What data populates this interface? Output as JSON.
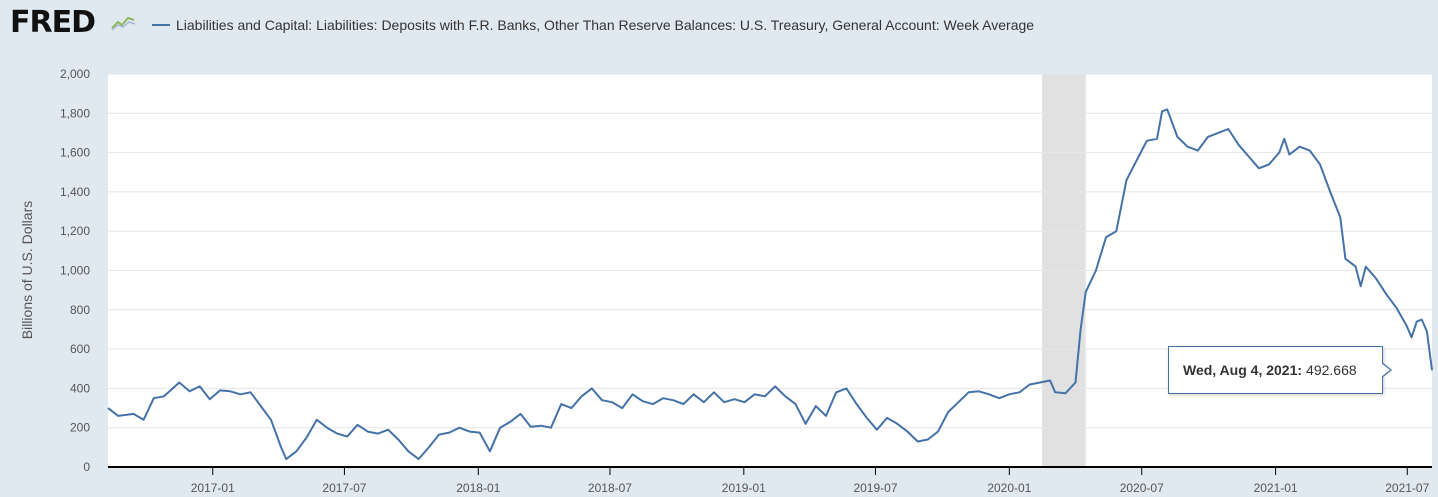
{
  "header": {
    "logo_text": "FRED",
    "legend_label": "Liabilities and Capital: Liabilities: Deposits with F.R. Banks, Other Than Reserve Balances: U.S. Treasury, General Account: Week Average"
  },
  "tooltip": {
    "date": "Wed, Aug 4, 2021:",
    "value": "492.668"
  },
  "colors": {
    "series": "#4572a7",
    "background": "#e1e9f0",
    "plot": "#ffffff",
    "recession": "#e1e1e1"
  },
  "chart_data": {
    "type": "line",
    "title": "",
    "xlabel": "",
    "ylabel": "Billions of U.S. Dollars",
    "ylim": [
      0,
      2000
    ],
    "yticks": [
      0,
      200,
      400,
      600,
      800,
      1000,
      1200,
      1400,
      1600,
      1800,
      2000
    ],
    "ytick_labels": [
      "0",
      "200",
      "400",
      "600",
      "800",
      "1,000",
      "1,200",
      "1,400",
      "1,600",
      "1,800",
      "2,000"
    ],
    "xticks": [
      "2017-01",
      "2017-07",
      "2018-01",
      "2018-07",
      "2019-01",
      "2019-07",
      "2020-01",
      "2020-07",
      "2021-01",
      "2021-07"
    ],
    "xlim": [
      "2016-08-10",
      "2021-08-04"
    ],
    "grid": true,
    "recession": {
      "start": "2020-02-15",
      "end": "2020-04-15"
    },
    "series": [
      {
        "name": "Liabilities and Capital: Liabilities: Deposits with F.R. Banks, Other Than Reserve Balances: U.S. Treasury, General Account: Week Average",
        "points": [
          [
            "2016-08-10",
            300
          ],
          [
            "2016-08-24",
            260
          ],
          [
            "2016-09-14",
            270
          ],
          [
            "2016-09-28",
            240
          ],
          [
            "2016-10-12",
            350
          ],
          [
            "2016-10-26",
            360
          ],
          [
            "2016-11-16",
            430
          ],
          [
            "2016-11-30",
            385
          ],
          [
            "2016-12-14",
            410
          ],
          [
            "2016-12-28",
            345
          ],
          [
            "2017-01-11",
            390
          ],
          [
            "2017-01-25",
            385
          ],
          [
            "2017-02-08",
            370
          ],
          [
            "2017-02-22",
            380
          ],
          [
            "2017-03-08",
            310
          ],
          [
            "2017-03-22",
            240
          ],
          [
            "2017-04-05",
            100
          ],
          [
            "2017-04-12",
            40
          ],
          [
            "2017-04-26",
            80
          ],
          [
            "2017-05-10",
            150
          ],
          [
            "2017-05-24",
            240
          ],
          [
            "2017-06-07",
            200
          ],
          [
            "2017-06-21",
            170
          ],
          [
            "2017-07-05",
            155
          ],
          [
            "2017-07-19",
            215
          ],
          [
            "2017-08-02",
            180
          ],
          [
            "2017-08-16",
            170
          ],
          [
            "2017-08-30",
            190
          ],
          [
            "2017-09-13",
            140
          ],
          [
            "2017-09-27",
            80
          ],
          [
            "2017-10-11",
            40
          ],
          [
            "2017-10-25",
            100
          ],
          [
            "2017-11-08",
            165
          ],
          [
            "2017-11-22",
            175
          ],
          [
            "2017-12-06",
            200
          ],
          [
            "2017-12-20",
            180
          ],
          [
            "2018-01-03",
            175
          ],
          [
            "2018-01-17",
            80
          ],
          [
            "2018-01-31",
            200
          ],
          [
            "2018-02-14",
            230
          ],
          [
            "2018-02-28",
            270
          ],
          [
            "2018-03-14",
            205
          ],
          [
            "2018-03-28",
            210
          ],
          [
            "2018-04-11",
            200
          ],
          [
            "2018-04-25",
            320
          ],
          [
            "2018-05-09",
            300
          ],
          [
            "2018-05-23",
            360
          ],
          [
            "2018-06-06",
            400
          ],
          [
            "2018-06-20",
            340
          ],
          [
            "2018-07-04",
            330
          ],
          [
            "2018-07-18",
            300
          ],
          [
            "2018-08-01",
            370
          ],
          [
            "2018-08-15",
            335
          ],
          [
            "2018-08-29",
            320
          ],
          [
            "2018-09-12",
            350
          ],
          [
            "2018-09-26",
            340
          ],
          [
            "2018-10-10",
            320
          ],
          [
            "2018-10-24",
            370
          ],
          [
            "2018-11-07",
            330
          ],
          [
            "2018-11-21",
            380
          ],
          [
            "2018-12-05",
            330
          ],
          [
            "2018-12-19",
            345
          ],
          [
            "2019-01-02",
            330
          ],
          [
            "2019-01-16",
            370
          ],
          [
            "2019-01-30",
            360
          ],
          [
            "2019-02-13",
            410
          ],
          [
            "2019-02-27",
            360
          ],
          [
            "2019-03-13",
            320
          ],
          [
            "2019-03-27",
            220
          ],
          [
            "2019-04-10",
            310
          ],
          [
            "2019-04-24",
            260
          ],
          [
            "2019-05-08",
            380
          ],
          [
            "2019-05-22",
            400
          ],
          [
            "2019-06-05",
            320
          ],
          [
            "2019-06-19",
            250
          ],
          [
            "2019-07-03",
            190
          ],
          [
            "2019-07-17",
            250
          ],
          [
            "2019-07-31",
            220
          ],
          [
            "2019-08-14",
            180
          ],
          [
            "2019-08-28",
            130
          ],
          [
            "2019-09-11",
            140
          ],
          [
            "2019-09-25",
            180
          ],
          [
            "2019-10-09",
            280
          ],
          [
            "2019-10-23",
            330
          ],
          [
            "2019-11-06",
            380
          ],
          [
            "2019-11-20",
            385
          ],
          [
            "2019-12-04",
            370
          ],
          [
            "2019-12-18",
            350
          ],
          [
            "2020-01-01",
            370
          ],
          [
            "2020-01-15",
            380
          ],
          [
            "2020-01-29",
            420
          ],
          [
            "2020-02-12",
            430
          ],
          [
            "2020-02-26",
            440
          ],
          [
            "2020-03-04",
            380
          ],
          [
            "2020-03-18",
            375
          ],
          [
            "2020-04-01",
            430
          ],
          [
            "2020-04-08",
            700
          ],
          [
            "2020-04-15",
            890
          ],
          [
            "2020-04-29",
            1000
          ],
          [
            "2020-05-13",
            1170
          ],
          [
            "2020-05-27",
            1200
          ],
          [
            "2020-06-10",
            1460
          ],
          [
            "2020-06-24",
            1560
          ],
          [
            "2020-07-08",
            1660
          ],
          [
            "2020-07-22",
            1670
          ],
          [
            "2020-07-29",
            1810
          ],
          [
            "2020-08-05",
            1820
          ],
          [
            "2020-08-19",
            1680
          ],
          [
            "2020-09-02",
            1630
          ],
          [
            "2020-09-16",
            1610
          ],
          [
            "2020-09-30",
            1680
          ],
          [
            "2020-10-14",
            1700
          ],
          [
            "2020-10-28",
            1720
          ],
          [
            "2020-11-11",
            1640
          ],
          [
            "2020-11-25",
            1580
          ],
          [
            "2020-12-09",
            1520
          ],
          [
            "2020-12-23",
            1540
          ],
          [
            "2021-01-06",
            1600
          ],
          [
            "2021-01-13",
            1670
          ],
          [
            "2021-01-20",
            1590
          ],
          [
            "2021-02-03",
            1630
          ],
          [
            "2021-02-17",
            1610
          ],
          [
            "2021-03-03",
            1540
          ],
          [
            "2021-03-17",
            1400
          ],
          [
            "2021-03-31",
            1270
          ],
          [
            "2021-04-07",
            1060
          ],
          [
            "2021-04-21",
            1020
          ],
          [
            "2021-04-28",
            920
          ],
          [
            "2021-05-05",
            1020
          ],
          [
            "2021-05-19",
            960
          ],
          [
            "2021-06-02",
            880
          ],
          [
            "2021-06-16",
            810
          ],
          [
            "2021-06-30",
            720
          ],
          [
            "2021-07-07",
            660
          ],
          [
            "2021-07-14",
            740
          ],
          [
            "2021-07-21",
            750
          ],
          [
            "2021-07-28",
            690
          ],
          [
            "2021-08-04",
            492.668
          ]
        ]
      }
    ]
  }
}
